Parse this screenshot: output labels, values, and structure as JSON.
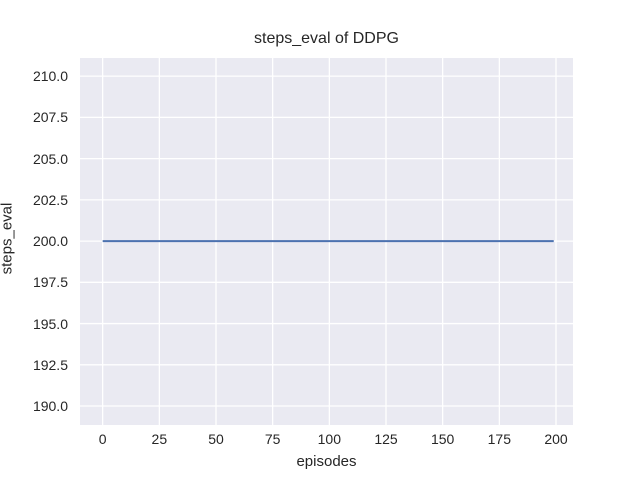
{
  "chart_data": {
    "type": "line",
    "title": "steps_eval of DDPG",
    "xlabel": "episodes",
    "ylabel": "steps_eval",
    "series": [
      {
        "name": "steps_eval",
        "color": "#4c72b0",
        "x": [
          0,
          199
        ],
        "y": [
          200,
          200
        ],
        "note": "constant flat line at y=200 across all episodes 0-199"
      }
    ],
    "xlim": [
      -10,
      207.5
    ],
    "ylim": [
      188.85,
      211.1
    ],
    "xticks": [
      0,
      25,
      50,
      75,
      100,
      125,
      150,
      175,
      200
    ],
    "yticks": [
      190.0,
      192.5,
      195.0,
      197.5,
      200.0,
      202.5,
      205.0,
      207.5,
      210.0
    ],
    "ytick_decimals": 1,
    "grid": true,
    "legend": false,
    "style": {
      "plot_bg": "#eaeaf2",
      "grid_color": "#ffffff",
      "text_color": "#262626",
      "line_width": 2,
      "grid_width": 1.3
    }
  }
}
